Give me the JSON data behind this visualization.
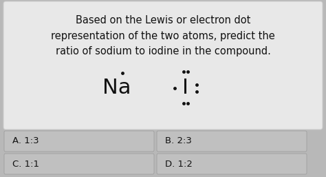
{
  "bg_color": "#b8b8b8",
  "card_color": "#e8e8e8",
  "card_border": "#cccccc",
  "question_lines": [
    "Based on the Lewis or electron dot",
    "representation of the two atoms, predict the",
    "ratio of sodium to iodine in the compound."
  ],
  "na_label": "Na",
  "i_label": "I",
  "answers": [
    "A. 1:3",
    "B. 2:3",
    "C. 1:1",
    "D. 1:2"
  ],
  "text_color": "#111111",
  "answer_bg": "#c0c0c0",
  "answer_border": "#999999",
  "font_size_question": 10.5,
  "font_size_symbol": 22,
  "font_size_answer": 9.5
}
